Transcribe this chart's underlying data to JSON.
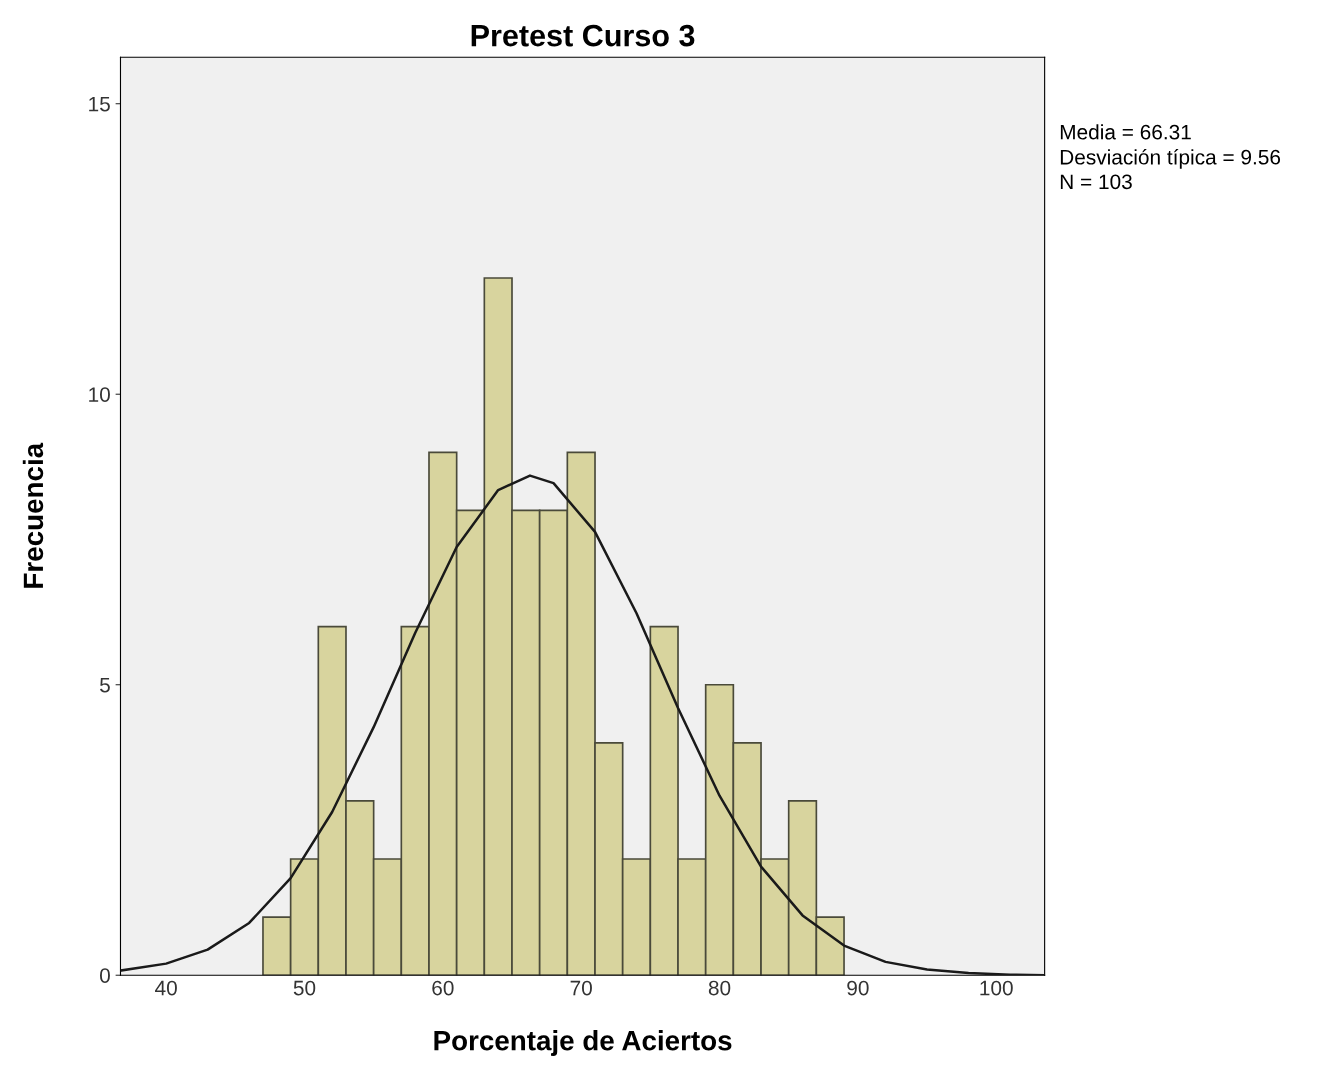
{
  "chart_data": {
    "type": "histogram",
    "title": "Pretest Curso 3",
    "xlabel": "Porcentaje de Aciertos",
    "ylabel": "Frecuencia",
    "bins": [
      47,
      49,
      51,
      53,
      55,
      57,
      59,
      61,
      63,
      65,
      67,
      69,
      71,
      73,
      75,
      77,
      79,
      81,
      83,
      85,
      87,
      89
    ],
    "values": [
      1,
      2,
      6,
      3,
      2,
      6,
      9,
      8,
      12,
      8,
      8,
      9,
      4,
      2,
      6,
      2,
      5,
      4,
      2,
      3,
      1
    ],
    "color": "#d8d49e",
    "series": [
      {
        "type": "line",
        "color": "#1a1a1a",
        "x": [
          36.7,
          40,
          43,
          46,
          49,
          52,
          55,
          58,
          61,
          64,
          66.3,
          68,
          71,
          74,
          77,
          80,
          83,
          86,
          89,
          92,
          95,
          98,
          101,
          103.5
        ],
        "values": [
          0.08,
          0.2,
          0.44,
          0.9,
          1.67,
          2.81,
          4.27,
          5.89,
          7.37,
          8.35,
          8.6,
          8.47,
          7.63,
          6.23,
          4.6,
          3.09,
          1.87,
          1.03,
          0.51,
          0.23,
          0.1,
          0.04,
          0.01,
          0.0
        ]
      }
    ],
    "xlim": [
      36.7,
      103.5
    ],
    "ylim": [
      0,
      15.8
    ],
    "xticks": [
      40,
      50,
      60,
      70,
      80,
      90,
      100
    ],
    "yticks": [
      0,
      5,
      10,
      15
    ],
    "grid": false,
    "legend": false,
    "annotations": [
      "Media = 66.31",
      "Desviación típica = 9.56",
      "N = 103"
    ]
  }
}
